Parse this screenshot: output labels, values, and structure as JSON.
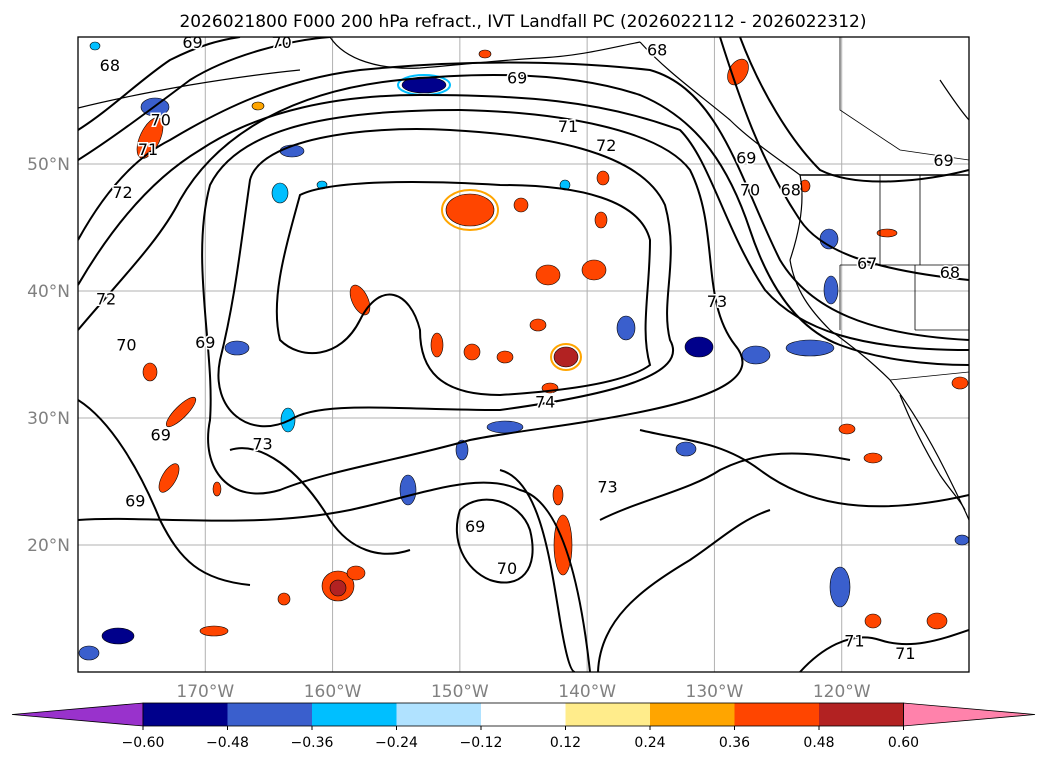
{
  "title": "2026021800 F000 200 hPa refract., IVT Landfall PC (2026022112 - 2026022312)",
  "map": {
    "lon_range": [
      -180,
      -110
    ],
    "lat_range": [
      10,
      60
    ],
    "lon_ticks": [
      {
        "lon": -170,
        "label": "170°W"
      },
      {
        "lon": -160,
        "label": "160°W"
      },
      {
        "lon": -150,
        "label": "150°W"
      },
      {
        "lon": -140,
        "label": "140°W"
      },
      {
        "lon": -130,
        "label": "130°W"
      },
      {
        "lon": -120,
        "label": "120°W"
      }
    ],
    "lat_ticks": [
      {
        "lat": 20,
        "label": "20°N"
      },
      {
        "lat": 30,
        "label": "30°N"
      },
      {
        "lat": 40,
        "label": "40°N"
      },
      {
        "lat": 50,
        "label": "50°N"
      }
    ],
    "grid": true,
    "tick_label_color": "#808080",
    "contour_labels": [
      {
        "lon": -171,
        "lat": 59.6,
        "text": "69"
      },
      {
        "lon": -177.5,
        "lat": 57.8,
        "text": "68"
      },
      {
        "lon": -164,
        "lat": 59.6,
        "text": "70"
      },
      {
        "lon": -145.5,
        "lat": 56.8,
        "text": "69"
      },
      {
        "lon": -134.5,
        "lat": 59,
        "text": "68"
      },
      {
        "lon": -173.5,
        "lat": 53.5,
        "text": "70"
      },
      {
        "lon": -174.5,
        "lat": 51.2,
        "text": "71"
      },
      {
        "lon": -176.5,
        "lat": 47.8,
        "text": "72"
      },
      {
        "lon": -141.5,
        "lat": 53,
        "text": "71"
      },
      {
        "lon": -138.5,
        "lat": 51.5,
        "text": "72"
      },
      {
        "lon": -127.5,
        "lat": 50.5,
        "text": "69"
      },
      {
        "lon": -127.2,
        "lat": 48,
        "text": "70"
      },
      {
        "lon": -124,
        "lat": 48,
        "text": "68"
      },
      {
        "lon": -112,
        "lat": 50.3,
        "text": "69"
      },
      {
        "lon": -118,
        "lat": 42.2,
        "text": "67"
      },
      {
        "lon": -111.5,
        "lat": 41.5,
        "text": "68"
      },
      {
        "lon": -129.8,
        "lat": 39.2,
        "text": "73"
      },
      {
        "lon": -177.8,
        "lat": 39.4,
        "text": "72"
      },
      {
        "lon": -176.2,
        "lat": 35.8,
        "text": "70"
      },
      {
        "lon": -170,
        "lat": 36,
        "text": "69"
      },
      {
        "lon": -173.5,
        "lat": 28.7,
        "text": "69"
      },
      {
        "lon": -175.5,
        "lat": 23.5,
        "text": "69"
      },
      {
        "lon": -165.5,
        "lat": 28,
        "text": "73"
      },
      {
        "lon": -143.3,
        "lat": 31.3,
        "text": "74"
      },
      {
        "lon": -138.4,
        "lat": 24.6,
        "text": "73"
      },
      {
        "lon": -148.8,
        "lat": 21.5,
        "text": "69"
      },
      {
        "lon": -146.3,
        "lat": 18.2,
        "text": "70"
      },
      {
        "lon": -119,
        "lat": 12.5,
        "text": "71"
      },
      {
        "lon": -115,
        "lat": 11.5,
        "text": "71"
      }
    ]
  },
  "colorbar": {
    "colors": [
      "#a020f0",
      "#9b30d9",
      "#00008b",
      "#3a5fcd",
      "#00bfff",
      "#b0e2ff",
      "#ffffff",
      "#ffec8b",
      "#ffa500",
      "#ff4500",
      "#b22222",
      "#ff82ab",
      "#ff8fb0"
    ],
    "segments": [
      {
        "color": "#9932cc"
      },
      {
        "color": "#00008b"
      },
      {
        "color": "#3a5fcd"
      },
      {
        "color": "#00bfff"
      },
      {
        "color": "#b0e2ff"
      },
      {
        "color": "#ffffff"
      },
      {
        "color": "#ffec8b"
      },
      {
        "color": "#ffa500"
      },
      {
        "color": "#ff4500"
      },
      {
        "color": "#b22222"
      },
      {
        "color": "#ff82ab"
      }
    ],
    "tick_labels": [
      "−0.60",
      "−0.48",
      "−0.36",
      "−0.24",
      "−0.12",
      "0.12",
      "0.24",
      "0.36",
      "0.48",
      "0.60"
    ]
  }
}
